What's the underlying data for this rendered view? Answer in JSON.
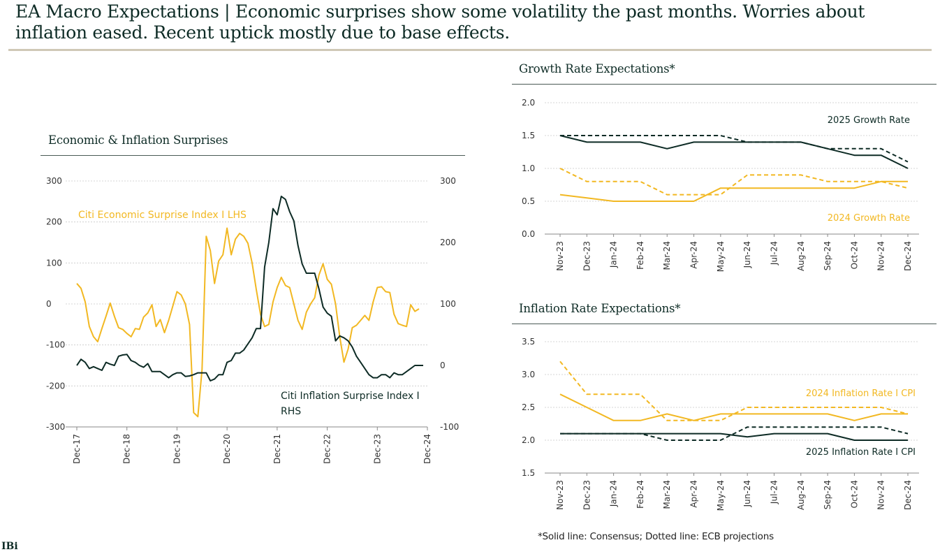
{
  "page": {
    "title": "EA Macro Expectations | Economic surprises show some volatility the past months. Worries about inflation eased. Recent uptick mostly due to base effects.",
    "footnote": "*Solid line: Consensus; Dotted line: ECB projections",
    "logo_text": "IBi"
  },
  "colors": {
    "dark": "#0d2b25",
    "gold": "#f2b822",
    "grid": "#c9c9c9",
    "axis": "#888888",
    "text": "#333333"
  },
  "chart_data": [
    {
      "type": "line",
      "title": "Economic & Inflation Surprises",
      "x_tick_labels": [
        "Dec-17",
        "Dec-18",
        "Dec-19",
        "Dec-20",
        "Dec-21",
        "Dec-22",
        "Dec-23",
        "Dec-24"
      ],
      "x_range": [
        0,
        84
      ],
      "left_axis": {
        "ticks": [
          300,
          200,
          100,
          0,
          -100,
          -200,
          -300
        ],
        "ylim": [
          -300,
          300
        ]
      },
      "right_axis": {
        "ticks": [
          300,
          200,
          100,
          0,
          -100
        ],
        "ylim": [
          -100,
          300
        ]
      },
      "series": [
        {
          "name": "Citi Economic Surprise Index I LHS",
          "axis": "left",
          "color": "gold",
          "values": [
            50,
            38,
            5,
            -55,
            -80,
            -92,
            -60,
            -30,
            2,
            -30,
            -58,
            -62,
            -72,
            -80,
            -60,
            -62,
            -32,
            -22,
            -2,
            -55,
            -38,
            -70,
            -40,
            -5,
            30,
            22,
            0,
            -50,
            -265,
            -275,
            -160,
            165,
            130,
            50,
            105,
            120,
            185,
            120,
            158,
            172,
            165,
            148,
            100,
            35,
            -25,
            -55,
            -50,
            5,
            40,
            65,
            45,
            40,
            0,
            -40,
            -62,
            -20,
            0,
            15,
            70,
            98,
            60,
            48,
            0,
            -80,
            -142,
            -110,
            -58,
            -52,
            -40,
            -28,
            -40,
            5,
            40,
            42,
            30,
            28,
            -25,
            -48,
            -52,
            -55,
            -2,
            -18,
            -12
          ],
          "label": "Citi Economic Surprise Index I LHS"
        },
        {
          "name": "Citi Inflation Surprise Index I RHS",
          "axis": "right",
          "color": "dark",
          "values": [
            0,
            10,
            5,
            -5,
            -2,
            -5,
            -8,
            5,
            2,
            0,
            15,
            17,
            18,
            8,
            5,
            0,
            -3,
            3,
            -10,
            -10,
            -10,
            -15,
            -20,
            -15,
            -12,
            -12,
            -18,
            -17,
            -15,
            -12,
            -12,
            -12,
            -25,
            -22,
            -15,
            -15,
            5,
            8,
            20,
            20,
            25,
            35,
            45,
            60,
            60,
            160,
            200,
            255,
            245,
            275,
            270,
            250,
            235,
            195,
            165,
            150,
            150,
            150,
            125,
            95,
            85,
            80,
            40,
            48,
            45,
            40,
            30,
            15,
            5,
            -5,
            -15,
            -20,
            -20,
            -15,
            -15,
            -20,
            -12,
            -15,
            -15,
            -10,
            -5,
            0,
            0,
            0
          ],
          "label": "Citi Inflation Surprise Index I RHS"
        }
      ]
    },
    {
      "type": "line",
      "title": "Growth Rate Expectations*",
      "categories": [
        "Nov-23",
        "Dec-23",
        "Jan-24",
        "Feb-24",
        "Mar-24",
        "Apr-24",
        "May-24",
        "Jun-24",
        "Jul-24",
        "Aug-24",
        "Sep-24",
        "Oct-24",
        "Nov-24",
        "Dec-24"
      ],
      "y_ticks": [
        "2.0",
        "1.5",
        "1.0",
        "0.5",
        "0.0"
      ],
      "ylim": [
        0,
        2
      ],
      "series": [
        {
          "name": "2025 Growth Rate Consensus",
          "color": "dark",
          "style": "solid",
          "values": [
            1.5,
            1.4,
            1.4,
            1.4,
            1.3,
            1.4,
            1.4,
            1.4,
            1.4,
            1.4,
            1.3,
            1.2,
            1.2,
            1.0
          ]
        },
        {
          "name": "2025 Growth Rate ECB",
          "color": "dark",
          "style": "dotted",
          "values": [
            1.5,
            1.5,
            1.5,
            1.5,
            1.5,
            1.5,
            1.5,
            1.4,
            1.4,
            1.4,
            1.3,
            1.3,
            1.3,
            1.1
          ]
        },
        {
          "name": "2024 Growth Rate Consensus",
          "color": "gold",
          "style": "solid",
          "values": [
            0.6,
            0.55,
            0.5,
            0.5,
            0.5,
            0.5,
            0.7,
            0.7,
            0.7,
            0.7,
            0.7,
            0.7,
            0.8,
            0.8
          ]
        },
        {
          "name": "2024 Growth Rate ECB",
          "color": "gold",
          "style": "dotted",
          "values": [
            1.0,
            0.8,
            0.8,
            0.8,
            0.6,
            0.6,
            0.6,
            0.9,
            0.9,
            0.9,
            0.8,
            0.8,
            0.8,
            0.7
          ]
        }
      ],
      "labels": {
        "dark": "2025 Growth Rate",
        "gold": "2024 Growth Rate"
      }
    },
    {
      "type": "line",
      "title": "Inflation Rate Expectations*",
      "categories": [
        "Nov-23",
        "Dec-23",
        "Jan-24",
        "Feb-24",
        "Mar-24",
        "Apr-24",
        "May-24",
        "Jun-24",
        "Jul-24",
        "Aug-24",
        "Sep-24",
        "Oct-24",
        "Nov-24",
        "Dec-24"
      ],
      "y_ticks": [
        "3.5",
        "3.0",
        "2.5",
        "2.0",
        "1.5"
      ],
      "ylim": [
        1.5,
        3.5
      ],
      "series": [
        {
          "name": "2024 Inflation Rate I CPI Consensus",
          "color": "gold",
          "style": "solid",
          "values": [
            2.7,
            2.5,
            2.3,
            2.3,
            2.4,
            2.3,
            2.4,
            2.4,
            2.4,
            2.4,
            2.4,
            2.3,
            2.4,
            2.4
          ]
        },
        {
          "name": "2024 Inflation Rate I CPI ECB",
          "color": "gold",
          "style": "dotted",
          "values": [
            3.2,
            2.7,
            2.7,
            2.7,
            2.3,
            2.3,
            2.3,
            2.5,
            2.5,
            2.5,
            2.5,
            2.5,
            2.5,
            2.4
          ]
        },
        {
          "name": "2025 Inflation Rate I CPI Consensus",
          "color": "dark",
          "style": "solid",
          "values": [
            2.1,
            2.1,
            2.1,
            2.1,
            2.1,
            2.1,
            2.1,
            2.05,
            2.1,
            2.1,
            2.1,
            2.0,
            2.0,
            2.0
          ]
        },
        {
          "name": "2025 Inflation Rate I CPI ECB",
          "color": "dark",
          "style": "dotted",
          "values": [
            2.1,
            2.1,
            2.1,
            2.1,
            2.0,
            2.0,
            2.0,
            2.2,
            2.2,
            2.2,
            2.2,
            2.2,
            2.2,
            2.1
          ]
        }
      ],
      "labels": {
        "gold": "2024 Inflation Rate I CPI",
        "dark": "2025 Inflation Rate I CPI"
      }
    }
  ]
}
